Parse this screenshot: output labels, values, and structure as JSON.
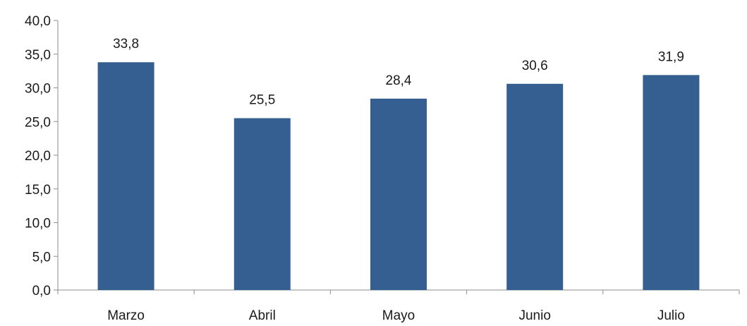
{
  "chart_data": {
    "type": "bar",
    "categories": [
      "Marzo",
      "Abril",
      "Mayo",
      "Junio",
      "Julio"
    ],
    "series": [
      {
        "values": [
          33.8,
          25.5,
          28.4,
          30.6,
          31.9
        ],
        "color": "#365F91"
      }
    ],
    "data_labels": [
      "33,8",
      "25,5",
      "28,4",
      "30,6",
      "31,9"
    ],
    "y_ticks": [
      "0,0",
      "5,0",
      "10,0",
      "15,0",
      "20,0",
      "25,0",
      "30,0",
      "35,0",
      "40,0"
    ],
    "ylim": [
      0,
      40
    ],
    "y_tick_step": 5,
    "grid": false,
    "legend": "none",
    "title": "",
    "xlabel": "",
    "ylabel": ""
  }
}
